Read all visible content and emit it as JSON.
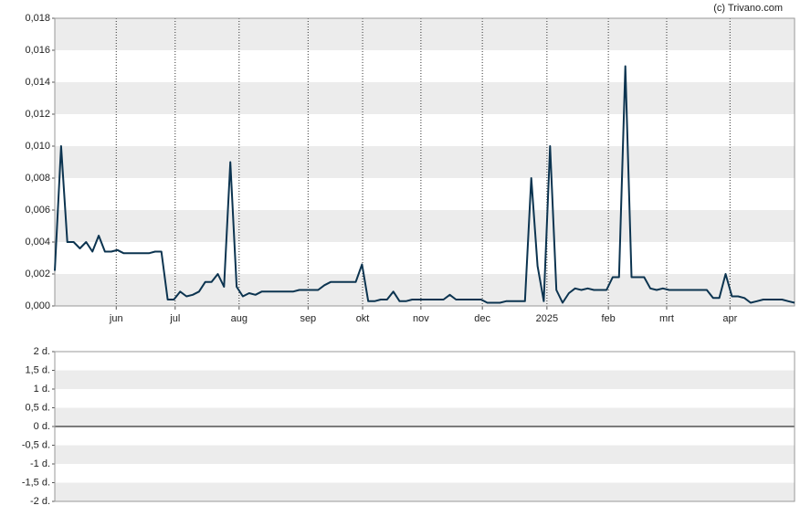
{
  "credit": "(c) Trivano.com",
  "chart_data": [
    {
      "type": "line",
      "color": "#0c3450",
      "grid": true,
      "values": [
        0.0022,
        0.01,
        0.004,
        0.004,
        0.0036,
        0.004,
        0.0034,
        0.0044,
        0.0034,
        0.0034,
        0.0035,
        0.0033,
        0.0033,
        0.0033,
        0.0033,
        0.0033,
        0.0034,
        0.0034,
        0.0004,
        0.0004,
        0.0009,
        0.0006,
        0.0007,
        0.0009,
        0.0015,
        0.0015,
        0.002,
        0.0012,
        0.009,
        0.0012,
        0.0006,
        0.0008,
        0.0007,
        0.0009,
        0.0009,
        0.0009,
        0.0009,
        0.0009,
        0.0009,
        0.001,
        0.001,
        0.001,
        0.001,
        0.0013,
        0.0015,
        0.0015,
        0.0015,
        0.0015,
        0.0015,
        0.0026,
        0.0003,
        0.0003,
        0.0004,
        0.0004,
        0.0009,
        0.0003,
        0.0003,
        0.0004,
        0.0004,
        0.0004,
        0.0004,
        0.0004,
        0.0004,
        0.0007,
        0.0004,
        0.0004,
        0.0004,
        0.0004,
        0.0004,
        0.0002,
        0.0002,
        0.0002,
        0.0003,
        0.0003,
        0.0003,
        0.0003,
        0.008,
        0.0025,
        0.0003,
        0.01,
        0.001,
        0.0002,
        0.0008,
        0.0011,
        0.001,
        0.0011,
        0.001,
        0.001,
        0.001,
        0.0018,
        0.0018,
        0.015,
        0.0018,
        0.0018,
        0.0018,
        0.0011,
        0.001,
        0.0011,
        0.001,
        0.001,
        0.001,
        0.001,
        0.001,
        0.001,
        0.001,
        0.0005,
        0.0005,
        0.002,
        0.0006,
        0.0006,
        0.0005,
        0.0002,
        0.0003,
        0.0004,
        0.0004,
        0.0004,
        0.0004,
        0.0003,
        0.0002
      ],
      "xlim": [
        0,
        118
      ],
      "xticks": [
        {
          "value": 9.8,
          "label": "jun"
        },
        {
          "value": 19.2,
          "label": "jul"
        },
        {
          "value": 29.4,
          "label": "aug"
        },
        {
          "value": 40.4,
          "label": "sep"
        },
        {
          "value": 49.1,
          "label": "okt"
        },
        {
          "value": 58.4,
          "label": "nov"
        },
        {
          "value": 68.2,
          "label": "dec"
        },
        {
          "value": 78.5,
          "label": "2025"
        },
        {
          "value": 88.3,
          "label": "feb"
        },
        {
          "value": 97.6,
          "label": "mrt"
        },
        {
          "value": 107.7,
          "label": "apr"
        }
      ],
      "ylim": [
        0,
        0.018
      ],
      "yticks": [
        {
          "value": 0,
          "label": "0,000"
        },
        {
          "value": 0.002,
          "label": "0,002"
        },
        {
          "value": 0.004,
          "label": "0,004"
        },
        {
          "value": 0.006,
          "label": "0,006"
        },
        {
          "value": 0.008,
          "label": "0,008"
        },
        {
          "value": 0.01,
          "label": "0,010"
        },
        {
          "value": 0.012,
          "label": "0,012"
        },
        {
          "value": 0.014,
          "label": "0,014"
        },
        {
          "value": 0.016,
          "label": "0,016"
        },
        {
          "value": 0.018,
          "label": "0,018"
        }
      ]
    },
    {
      "type": "bar",
      "color": "#0c3450",
      "grid": true,
      "values": [],
      "ylim": [
        -2,
        2
      ],
      "yticks": [
        {
          "value": -2,
          "label": "-2 d."
        },
        {
          "value": -1.5,
          "label": "-1,5 d."
        },
        {
          "value": -1,
          "label": "-1 d."
        },
        {
          "value": -0.5,
          "label": "-0,5 d."
        },
        {
          "value": 0,
          "label": "0 d."
        },
        {
          "value": 0.5,
          "label": "0,5 d."
        },
        {
          "value": 1,
          "label": "1 d."
        },
        {
          "value": 1.5,
          "label": "1,5 d."
        },
        {
          "value": 2,
          "label": "2 d."
        }
      ]
    }
  ]
}
